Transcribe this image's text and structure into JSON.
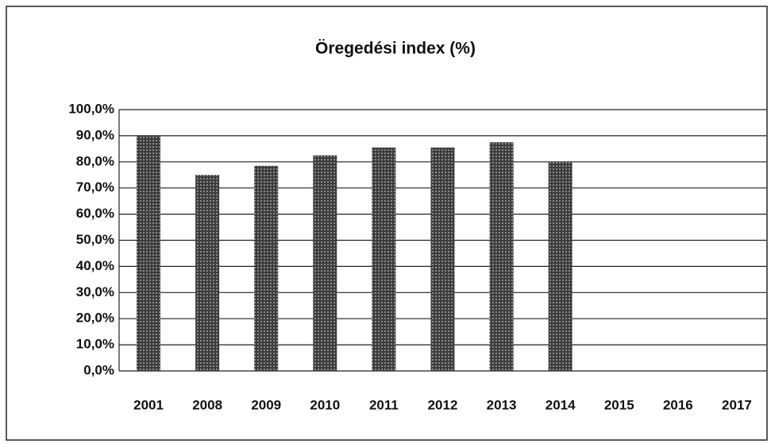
{
  "chart_data": {
    "type": "bar",
    "title": "Öregedési index (%)",
    "categories": [
      "2001",
      "2008",
      "2009",
      "2010",
      "2011",
      "2012",
      "2013",
      "2014",
      "2015",
      "2016",
      "2017"
    ],
    "values": [
      90,
      75,
      78.5,
      82.5,
      85.5,
      85.5,
      87.5,
      80,
      null,
      null,
      null
    ],
    "color": "#4a4a4a",
    "ylim": [
      0,
      100
    ],
    "yticks": [
      {
        "value": 0,
        "label": "0,0%"
      },
      {
        "value": 10,
        "label": "10,0%"
      },
      {
        "value": 20,
        "label": "20,0%"
      },
      {
        "value": 30,
        "label": "30,0%"
      },
      {
        "value": 40,
        "label": "40,0%"
      },
      {
        "value": 50,
        "label": "50,0%"
      },
      {
        "value": 60,
        "label": "60,0%"
      },
      {
        "value": 70,
        "label": "70,0%"
      },
      {
        "value": 80,
        "label": "80,0%"
      },
      {
        "value": 90,
        "label": "90,0%"
      },
      {
        "value": 100,
        "label": "100,0%"
      }
    ],
    "grid": true
  }
}
